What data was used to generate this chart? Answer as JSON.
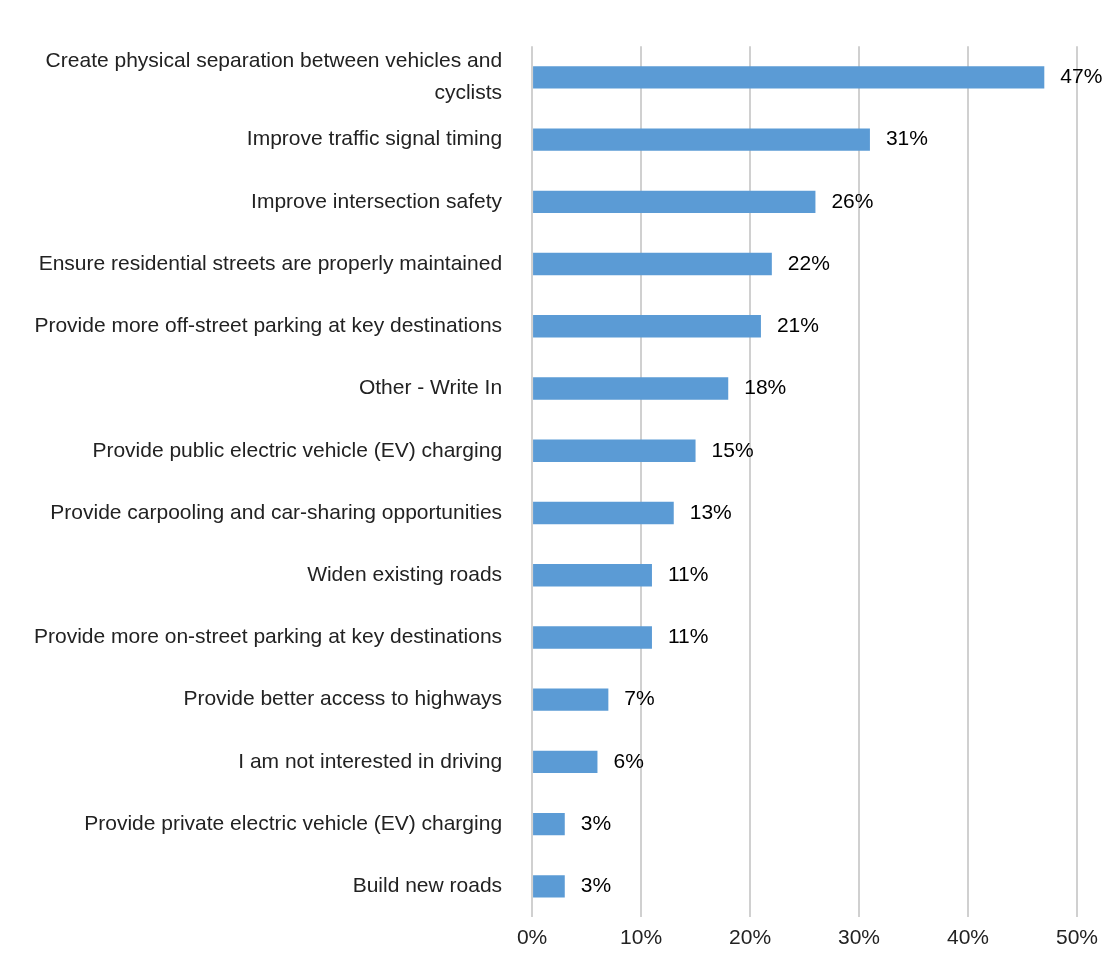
{
  "chart_data": {
    "type": "bar",
    "orientation": "horizontal",
    "categories": [
      "Create physical separation between vehicles and cyclists",
      "Improve traffic signal timing",
      "Improve intersection safety",
      "Ensure residential streets are properly maintained",
      "Provide more off-street parking at key destinations",
      "Other - Write In",
      "Provide public electric vehicle (EV) charging",
      "Provide carpooling and car-sharing opportunities",
      "Widen existing roads",
      "Provide more on-street parking at key destinations",
      "Provide better access to highways",
      "I am not interested in driving",
      "Provide private electric vehicle (EV) charging",
      "Build new roads"
    ],
    "values": [
      47,
      31,
      26,
      22,
      21,
      18,
      15,
      13,
      11,
      11,
      7,
      6,
      3,
      3
    ],
    "value_labels": [
      "47%",
      "31%",
      "26%",
      "22%",
      "21%",
      "18%",
      "15%",
      "13%",
      "11%",
      "11%",
      "7%",
      "6%",
      "3%",
      "3%"
    ],
    "color": "#5b9bd5",
    "xlim": [
      0,
      50
    ],
    "xticks": [
      {
        "value": 0,
        "label": "0%"
      },
      {
        "value": 10,
        "label": "10%"
      },
      {
        "value": 20,
        "label": "20%"
      },
      {
        "value": 30,
        "label": "30%"
      },
      {
        "value": 40,
        "label": "40%"
      },
      {
        "value": 50,
        "label": "50%"
      }
    ],
    "grid": "x"
  }
}
